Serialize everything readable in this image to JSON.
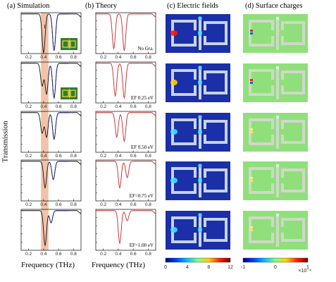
{
  "titles": {
    "a": "(a) Simulation",
    "b": "(b) Theory",
    "c": "(c) Electric fields",
    "d": "(d) Surface charges"
  },
  "ylabel": "Transmission",
  "xlabel_a": "Frequency (THz)",
  "xlabel_b": "Frequency (THz)",
  "marker_label": "I",
  "rows": [
    {
      "label": "No Gra."
    },
    {
      "label": "EF 0.25 eV"
    },
    {
      "label": "EF 0.50 eV"
    },
    {
      "label": "EF=0.75 eV"
    },
    {
      "label": "EF=1.00 eV"
    }
  ],
  "ticks_x": [
    "0.2",
    "0.4",
    "0.6",
    "0.8"
  ],
  "colorbar_c": {
    "ticks": [
      "0",
      "4",
      "8",
      "12"
    ]
  },
  "colorbar_d": {
    "ticks": [
      "-1",
      "0",
      "1"
    ],
    "multiplier": "×10⁻⁴"
  },
  "colors": {
    "simulation_dip": "#1a237e",
    "theory": "#c62828",
    "highlight": "#f0b79a",
    "field_bg": "#1a2fa8",
    "charge_bg": "#8fe07a"
  },
  "chart_data": [
    {
      "type": "line",
      "panel": "(a) Simulation",
      "x_range": [
        0.1,
        0.9
      ],
      "y_range": [
        0,
        1
      ],
      "series": [
        {
          "name": "No Gra.",
          "dips": [
            {
              "f": 0.4,
              "depth": 0.95
            },
            {
              "f": 0.54,
              "depth": 0.9
            }
          ]
        },
        {
          "name": "EF 0.25 eV",
          "dips": [
            {
              "f": 0.38,
              "depth": 0.55
            },
            {
              "f": 0.44,
              "depth": 0.75
            },
            {
              "f": 0.54,
              "depth": 0.85
            }
          ]
        },
        {
          "name": "EF 0.50 eV",
          "dips": [
            {
              "f": 0.38,
              "depth": 0.5
            },
            {
              "f": 0.44,
              "depth": 0.6
            },
            {
              "f": 0.54,
              "depth": 0.65
            }
          ]
        },
        {
          "name": "EF=0.75 eV",
          "dips": [
            {
              "f": 0.42,
              "depth": 0.65
            },
            {
              "f": 0.53,
              "depth": 0.45
            }
          ]
        },
        {
          "name": "EF=1.00 eV",
          "dips": [
            {
              "f": 0.42,
              "depth": 0.85
            },
            {
              "f": 0.5,
              "depth": 0.3
            }
          ]
        }
      ]
    },
    {
      "type": "line",
      "panel": "(b) Theory",
      "x_range": [
        0.1,
        0.9
      ],
      "y_range": [
        0,
        1
      ],
      "series": [
        {
          "name": "No Gra.",
          "dips": [
            {
              "f": 0.34,
              "depth": 0.85
            },
            {
              "f": 0.48,
              "depth": 0.9
            }
          ]
        },
        {
          "name": "EF 0.25 eV",
          "dips": [
            {
              "f": 0.36,
              "depth": 0.8
            },
            {
              "f": 0.48,
              "depth": 0.85
            }
          ]
        },
        {
          "name": "EF 0.50 eV",
          "dips": [
            {
              "f": 0.38,
              "depth": 0.6
            },
            {
              "f": 0.48,
              "depth": 0.7
            }
          ]
        },
        {
          "name": "EF=0.75 eV",
          "dips": [
            {
              "f": 0.42,
              "depth": 0.65
            },
            {
              "f": 0.52,
              "depth": 0.4
            }
          ]
        },
        {
          "name": "EF=1.00 eV",
          "dips": [
            {
              "f": 0.42,
              "depth": 0.8
            },
            {
              "f": 0.52,
              "depth": 0.25
            }
          ]
        }
      ]
    }
  ]
}
